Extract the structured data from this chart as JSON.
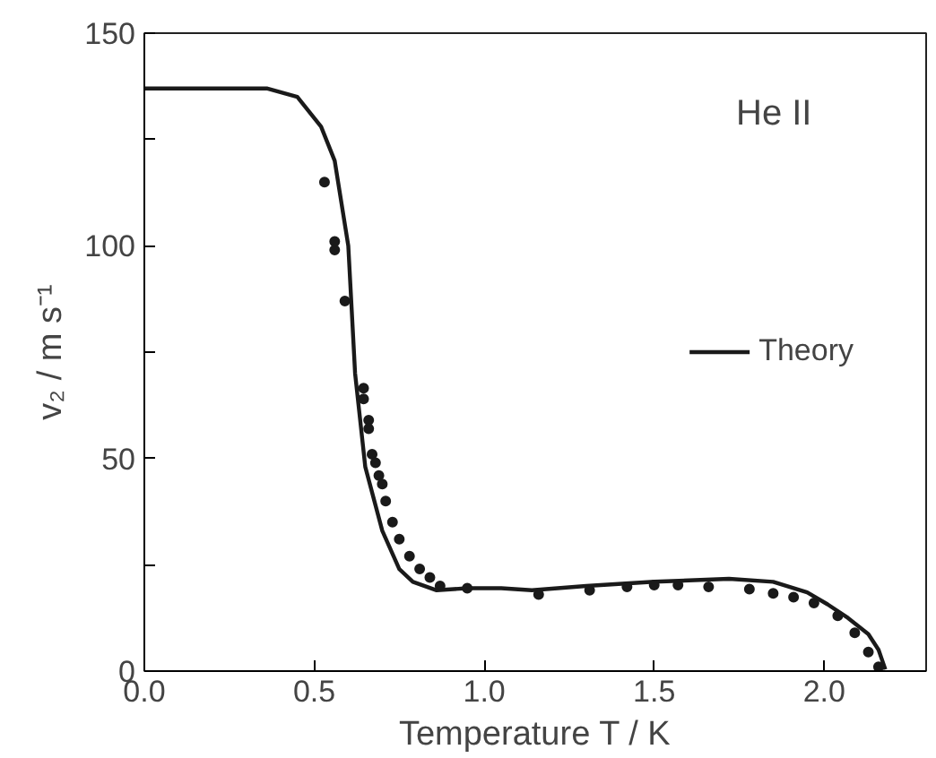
{
  "chart_data": {
    "type": "line",
    "xlabel": "Temperature T / K",
    "ylabel": "v₂ / m s⁻¹",
    "annotations": [
      "He II"
    ],
    "xlim": [
      0,
      2.3
    ],
    "ylim": [
      0,
      150
    ],
    "xticks": [
      {
        "value": 0,
        "label": "0.0"
      },
      {
        "value": 0.5,
        "label": "0.5"
      },
      {
        "value": 1,
        "label": "1.0"
      },
      {
        "value": 1.5,
        "label": "1.5"
      },
      {
        "value": 2,
        "label": "2.0"
      }
    ],
    "yticks": [
      0,
      {
        "value": 25,
        "label": null
      },
      50,
      {
        "value": 75,
        "label": null
      },
      100,
      {
        "value": 125,
        "label": null
      },
      150
    ],
    "grid": false,
    "legend": "right",
    "series": [
      {
        "name": "Theory",
        "color": "#1a1a1a",
        "line_style": "solid",
        "marker": "none",
        "x": [
          0,
          0.2,
          0.36,
          0.45,
          0.52,
          0.56,
          0.6,
          0.62,
          0.65,
          0.7,
          0.75,
          0.79,
          0.86,
          0.95,
          1.05,
          1.14,
          1.3,
          1.5,
          1.72,
          1.85,
          1.95,
          2.01,
          2.07,
          2.13,
          2.16,
          2.18
        ],
        "values": [
          137,
          137,
          137,
          135,
          128,
          120,
          100,
          70,
          48,
          33,
          24,
          21,
          19,
          19.5,
          19.5,
          19,
          20,
          21,
          21.7,
          21,
          18.5,
          15.7,
          12.5,
          8.7,
          5,
          0.4
        ]
      },
      {
        "type": "scatter",
        "color": "#1a1a1a",
        "marker": "circle",
        "x": [
          0.53,
          0.56,
          0.56,
          0.59,
          0.645,
          0.645,
          0.66,
          0.66,
          0.67,
          0.68,
          0.69,
          0.7,
          0.71,
          0.73,
          0.75,
          0.78,
          0.81,
          0.84,
          0.87,
          0.95,
          1.16,
          1.31,
          1.42,
          1.5,
          1.57,
          1.66,
          1.78,
          1.85,
          1.91,
          1.97,
          2.04,
          2.09,
          2.13,
          2.16
        ],
        "values": [
          115,
          101,
          99,
          87,
          66.5,
          64,
          59,
          57,
          51,
          49,
          46,
          44,
          40,
          35,
          31,
          27,
          24,
          22,
          20,
          19.5,
          18,
          19,
          19.8,
          20.2,
          20.2,
          19.8,
          19.3,
          18.3,
          17.4,
          16,
          13,
          9,
          4.5,
          1
        ]
      }
    ]
  }
}
